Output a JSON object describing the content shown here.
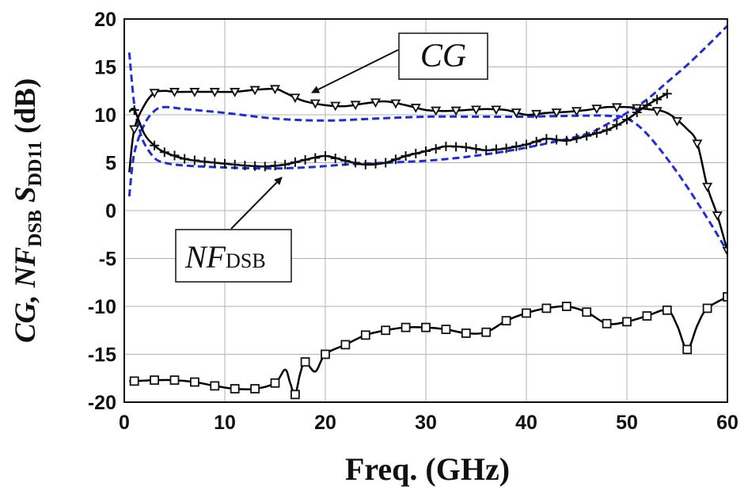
{
  "chart_data": {
    "type": "line",
    "xlabel": "Freq. (GHz)",
    "ylabel": {
      "part1": "CG, NF",
      "sub1": "DSB",
      "part2": " S",
      "sub2": "DD11",
      "part3": " (dB)"
    },
    "xlim": [
      0,
      60
    ],
    "ylim": [
      -20,
      20
    ],
    "xticks": [
      "0",
      "10",
      "20",
      "30",
      "40",
      "50",
      "60"
    ],
    "yticks": [
      "-20",
      "-15",
      "-10",
      "-5",
      "0",
      "5",
      "10",
      "15",
      "20"
    ],
    "grid": true,
    "annotations": {
      "cg": {
        "text": "CG"
      },
      "nf": {
        "main": "NF",
        "sub": "DSB"
      }
    },
    "colors": {
      "measured": "#000000",
      "simulated": "#1f2ed6",
      "grid": "#b3b3b3"
    },
    "series": [
      {
        "style": "measured",
        "marker": "triangle-down",
        "x": [
          0.5,
          1,
          2,
          3,
          4,
          5,
          7,
          9,
          11,
          13,
          15,
          16,
          17,
          18,
          20,
          22,
          24,
          26,
          28,
          30,
          32,
          34,
          36,
          38,
          40,
          42,
          44,
          46,
          48,
          50,
          52,
          54,
          56,
          57,
          58,
          59,
          60
        ],
        "y": [
          4.0,
          8.5,
          11.0,
          12.3,
          12.5,
          12.4,
          12.4,
          12.4,
          12.4,
          12.6,
          12.7,
          12.3,
          11.8,
          11.4,
          11.0,
          10.9,
          11.2,
          11.4,
          11.0,
          10.5,
          10.4,
          10.5,
          10.6,
          10.5,
          10.0,
          10.2,
          10.3,
          10.5,
          10.8,
          10.8,
          10.6,
          10.2,
          8.5,
          7.0,
          2.5,
          -0.5,
          -4.2
        ],
        "marker_x": [
          1,
          3,
          5,
          7,
          9,
          11,
          13,
          15,
          17,
          19,
          21,
          23,
          25,
          27,
          29,
          31,
          33,
          35,
          37,
          39,
          41,
          43,
          45,
          47,
          49,
          51,
          53,
          55,
          57,
          58,
          59,
          60
        ]
      },
      {
        "style": "measured",
        "marker": "plus",
        "x": [
          0.5,
          1,
          2,
          3,
          4,
          6,
          8,
          10,
          12,
          14,
          16,
          18,
          20,
          22,
          24,
          26,
          28,
          30,
          32,
          34,
          36,
          38,
          40,
          42,
          44,
          46,
          48,
          50,
          52,
          54
        ],
        "y": [
          10.3,
          10.5,
          8.0,
          6.8,
          6.1,
          5.4,
          5.1,
          4.9,
          4.7,
          4.6,
          4.8,
          5.3,
          5.7,
          5.2,
          4.8,
          5.0,
          5.7,
          6.2,
          6.7,
          6.6,
          6.3,
          6.5,
          6.9,
          7.5,
          7.3,
          7.8,
          8.4,
          9.5,
          11.0,
          12.2
        ],
        "marker_x": [
          1,
          3,
          4,
          5,
          6,
          7,
          8,
          9,
          10,
          11,
          12,
          13,
          14,
          15,
          16,
          17,
          18,
          19,
          20,
          21,
          22,
          23,
          24,
          25,
          26,
          27,
          28,
          29,
          30,
          31,
          32,
          33,
          34,
          35,
          36,
          37,
          38,
          39,
          40,
          41,
          42,
          43,
          44,
          45,
          46,
          47,
          48,
          49,
          50,
          51,
          52,
          53,
          54
        ]
      },
      {
        "style": "measured",
        "marker": "square",
        "x": [
          0.5,
          1,
          3,
          5,
          7,
          9,
          11,
          13,
          15,
          16,
          16.5,
          17,
          17.5,
          18,
          19,
          20,
          22,
          24,
          26,
          28,
          30,
          32,
          34,
          36,
          38,
          40,
          42,
          44,
          46,
          48,
          50,
          52,
          54,
          55,
          56,
          57,
          58,
          60
        ],
        "y": [
          -17.8,
          -17.8,
          -17.7,
          -17.7,
          -17.9,
          -18.3,
          -18.6,
          -18.6,
          -18.0,
          -16.6,
          -18.0,
          -19.2,
          -17.0,
          -15.8,
          -16.8,
          -15.0,
          -14.0,
          -13.0,
          -12.5,
          -12.2,
          -12.2,
          -12.4,
          -12.8,
          -12.7,
          -11.5,
          -10.7,
          -10.2,
          -10.0,
          -10.6,
          -11.8,
          -11.6,
          -11.0,
          -10.4,
          -12.0,
          -14.5,
          -12.0,
          -10.2,
          -9.0
        ],
        "marker_x": [
          1,
          3,
          5,
          7,
          9,
          11,
          13,
          15,
          17,
          18,
          20,
          22,
          24,
          26,
          28,
          30,
          32,
          34,
          36,
          38,
          40,
          42,
          44,
          46,
          48,
          50,
          52,
          54,
          56,
          58,
          60
        ]
      },
      {
        "style": "simulated",
        "x": [
          0.5,
          1,
          2,
          3,
          4,
          6,
          10,
          15,
          20,
          25,
          30,
          35,
          40,
          45,
          48,
          50,
          52,
          55,
          58,
          60
        ],
        "y": [
          1.5,
          6.0,
          9.0,
          10.4,
          10.8,
          10.6,
          10.2,
          9.6,
          9.4,
          9.6,
          9.8,
          9.8,
          9.8,
          9.9,
          9.9,
          9.6,
          8.0,
          4.0,
          -0.8,
          -4.3
        ]
      },
      {
        "style": "simulated",
        "x": [
          0.5,
          1,
          1.5,
          2,
          3,
          4,
          6,
          10,
          14,
          18,
          22,
          26,
          30,
          34,
          38,
          42,
          46,
          48,
          50,
          52,
          54,
          56,
          58,
          60
        ],
        "y": [
          16.5,
          11.0,
          8.5,
          7.0,
          5.5,
          5.0,
          4.7,
          4.5,
          4.4,
          4.5,
          4.8,
          5.0,
          5.2,
          5.6,
          6.2,
          7.0,
          8.0,
          9.0,
          10.2,
          11.6,
          13.4,
          15.2,
          17.2,
          19.3
        ]
      }
    ]
  }
}
